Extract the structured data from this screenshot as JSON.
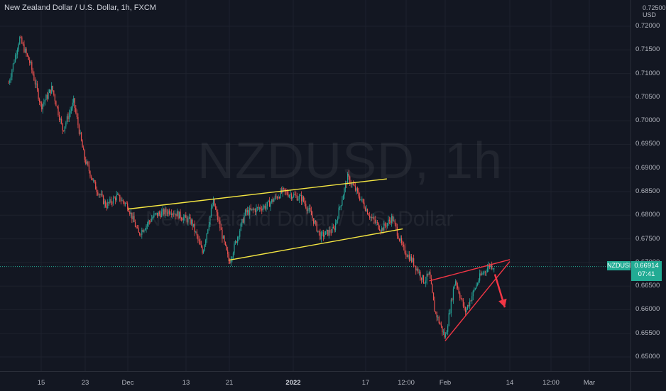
{
  "header": {
    "symbol_title": "New Zealand Dollar / U.S. Dollar, 1h, FXCM"
  },
  "watermark": {
    "symbol": "NZDUSD, 1h",
    "description": "New Zealand Dollar / U.S. Dollar"
  },
  "price_scale": {
    "currency_line1": "0.72500",
    "currency_line2": "USD",
    "ticks": [
      "0.72000",
      "0.71500",
      "0.71000",
      "0.70500",
      "0.70000",
      "0.69500",
      "0.69000",
      "0.68500",
      "0.68000",
      "0.67500",
      "0.67000",
      "0.66500",
      "0.66000",
      "0.65500",
      "0.65000"
    ],
    "current_symbol": "NZDUSD",
    "current_price": "0.66914",
    "countdown": "07:41"
  },
  "time_scale": {
    "ticks": [
      {
        "label": "15",
        "bold": false
      },
      {
        "label": "23",
        "bold": false
      },
      {
        "label": "Dec",
        "bold": false
      },
      {
        "label": "13",
        "bold": false
      },
      {
        "label": "21",
        "bold": false
      },
      {
        "label": "2022",
        "bold": true
      },
      {
        "label": "17",
        "bold": false
      },
      {
        "label": "12:00",
        "bold": false
      },
      {
        "label": "Feb",
        "bold": false
      },
      {
        "label": "14",
        "bold": false
      },
      {
        "label": "12:00",
        "bold": false
      },
      {
        "label": "Mar",
        "bold": false
      }
    ]
  },
  "colors": {
    "background": "#131722",
    "grid": "#1e222d",
    "candle_up": "#26a69a",
    "candle_down": "#ef5350",
    "channel_lines": "#f5e642",
    "wedge_lines": "#f23645",
    "price_label": "#22ab94"
  },
  "chart_data": {
    "type": "candlestick",
    "symbol": "NZDUSD",
    "interval": "1h",
    "y_range": [
      0.645,
      0.7275
    ],
    "price_path": [
      {
        "x": "Nov 9",
        "price": 0.708
      },
      {
        "x": "Nov 11",
        "price": 0.7175
      },
      {
        "x": "Nov 13",
        "price": 0.712
      },
      {
        "x": "Nov 15",
        "price": 0.703
      },
      {
        "x": "Nov 17",
        "price": 0.707
      },
      {
        "x": "Nov 19",
        "price": 0.698
      },
      {
        "x": "Nov 21",
        "price": 0.704
      },
      {
        "x": "Nov 23",
        "price": 0.692
      },
      {
        "x": "Nov 25",
        "price": 0.686
      },
      {
        "x": "Nov 27",
        "price": 0.682
      },
      {
        "x": "Nov 29",
        "price": 0.684
      },
      {
        "x": "Dec 1",
        "price": 0.682
      },
      {
        "x": "Dec 3",
        "price": 0.676
      },
      {
        "x": "Dec 6",
        "price": 0.68
      },
      {
        "x": "Dec 9",
        "price": 0.681
      },
      {
        "x": "Dec 13",
        "price": 0.6785
      },
      {
        "x": "Dec 15",
        "price": 0.672
      },
      {
        "x": "Dec 17",
        "price": 0.683
      },
      {
        "x": "Dec 20",
        "price": 0.67
      },
      {
        "x": "Dec 23",
        "price": 0.6805
      },
      {
        "x": "Dec 27",
        "price": 0.682
      },
      {
        "x": "Dec 30",
        "price": 0.685
      },
      {
        "x": "Jan 3",
        "price": 0.6835
      },
      {
        "x": "Jan 5",
        "price": 0.68
      },
      {
        "x": "Jan 7",
        "price": 0.6755
      },
      {
        "x": "Jan 10",
        "price": 0.677
      },
      {
        "x": "Jan 13",
        "price": 0.688
      },
      {
        "x": "Jan 15",
        "price": 0.685
      },
      {
        "x": "Jan 18",
        "price": 0.6795
      },
      {
        "x": "Jan 20",
        "price": 0.677
      },
      {
        "x": "Jan 22",
        "price": 0.6795
      },
      {
        "x": "Jan 24",
        "price": 0.673
      },
      {
        "x": "Jan 26",
        "price": 0.67
      },
      {
        "x": "Jan 28",
        "price": 0.666
      },
      {
        "x": "Jan 29",
        "price": 0.6675
      },
      {
        "x": "Jan 30",
        "price": 0.66
      },
      {
        "x": "Feb 1",
        "price": 0.654
      },
      {
        "x": "Feb 3",
        "price": 0.6665
      },
      {
        "x": "Feb 5",
        "price": 0.6595
      },
      {
        "x": "Feb 8",
        "price": 0.667
      },
      {
        "x": "Feb 10",
        "price": 0.6695
      },
      {
        "x": "Feb 11",
        "price": 0.6691
      }
    ],
    "drawings": [
      {
        "name": "ascending channel upper",
        "color": "#f5e642",
        "from": {
          "x": "Dec 1",
          "price": 0.6813
        },
        "to": {
          "x": "Jan 21",
          "price": 0.6877
        }
      },
      {
        "name": "ascending channel lower",
        "color": "#f5e642",
        "from": {
          "x": "Dec 20",
          "price": 0.6705
        },
        "to": {
          "x": "Jan 24",
          "price": 0.6771
        }
      },
      {
        "name": "rising wedge upper",
        "color": "#f23645",
        "from": {
          "x": "Jan 29",
          "price": 0.6661
        },
        "to": {
          "x": "Feb 14",
          "price": 0.6706
        }
      },
      {
        "name": "rising wedge lower",
        "color": "#f23645",
        "from": {
          "x": "Feb 1",
          "price": 0.6534
        },
        "to": {
          "x": "Feb 14",
          "price": 0.6702
        }
      },
      {
        "name": "bearish arrow",
        "color": "#f23645",
        "from": {
          "x": "Feb 11",
          "price": 0.6675
        },
        "to": {
          "x": "Feb 13",
          "price": 0.6605
        }
      }
    ]
  }
}
